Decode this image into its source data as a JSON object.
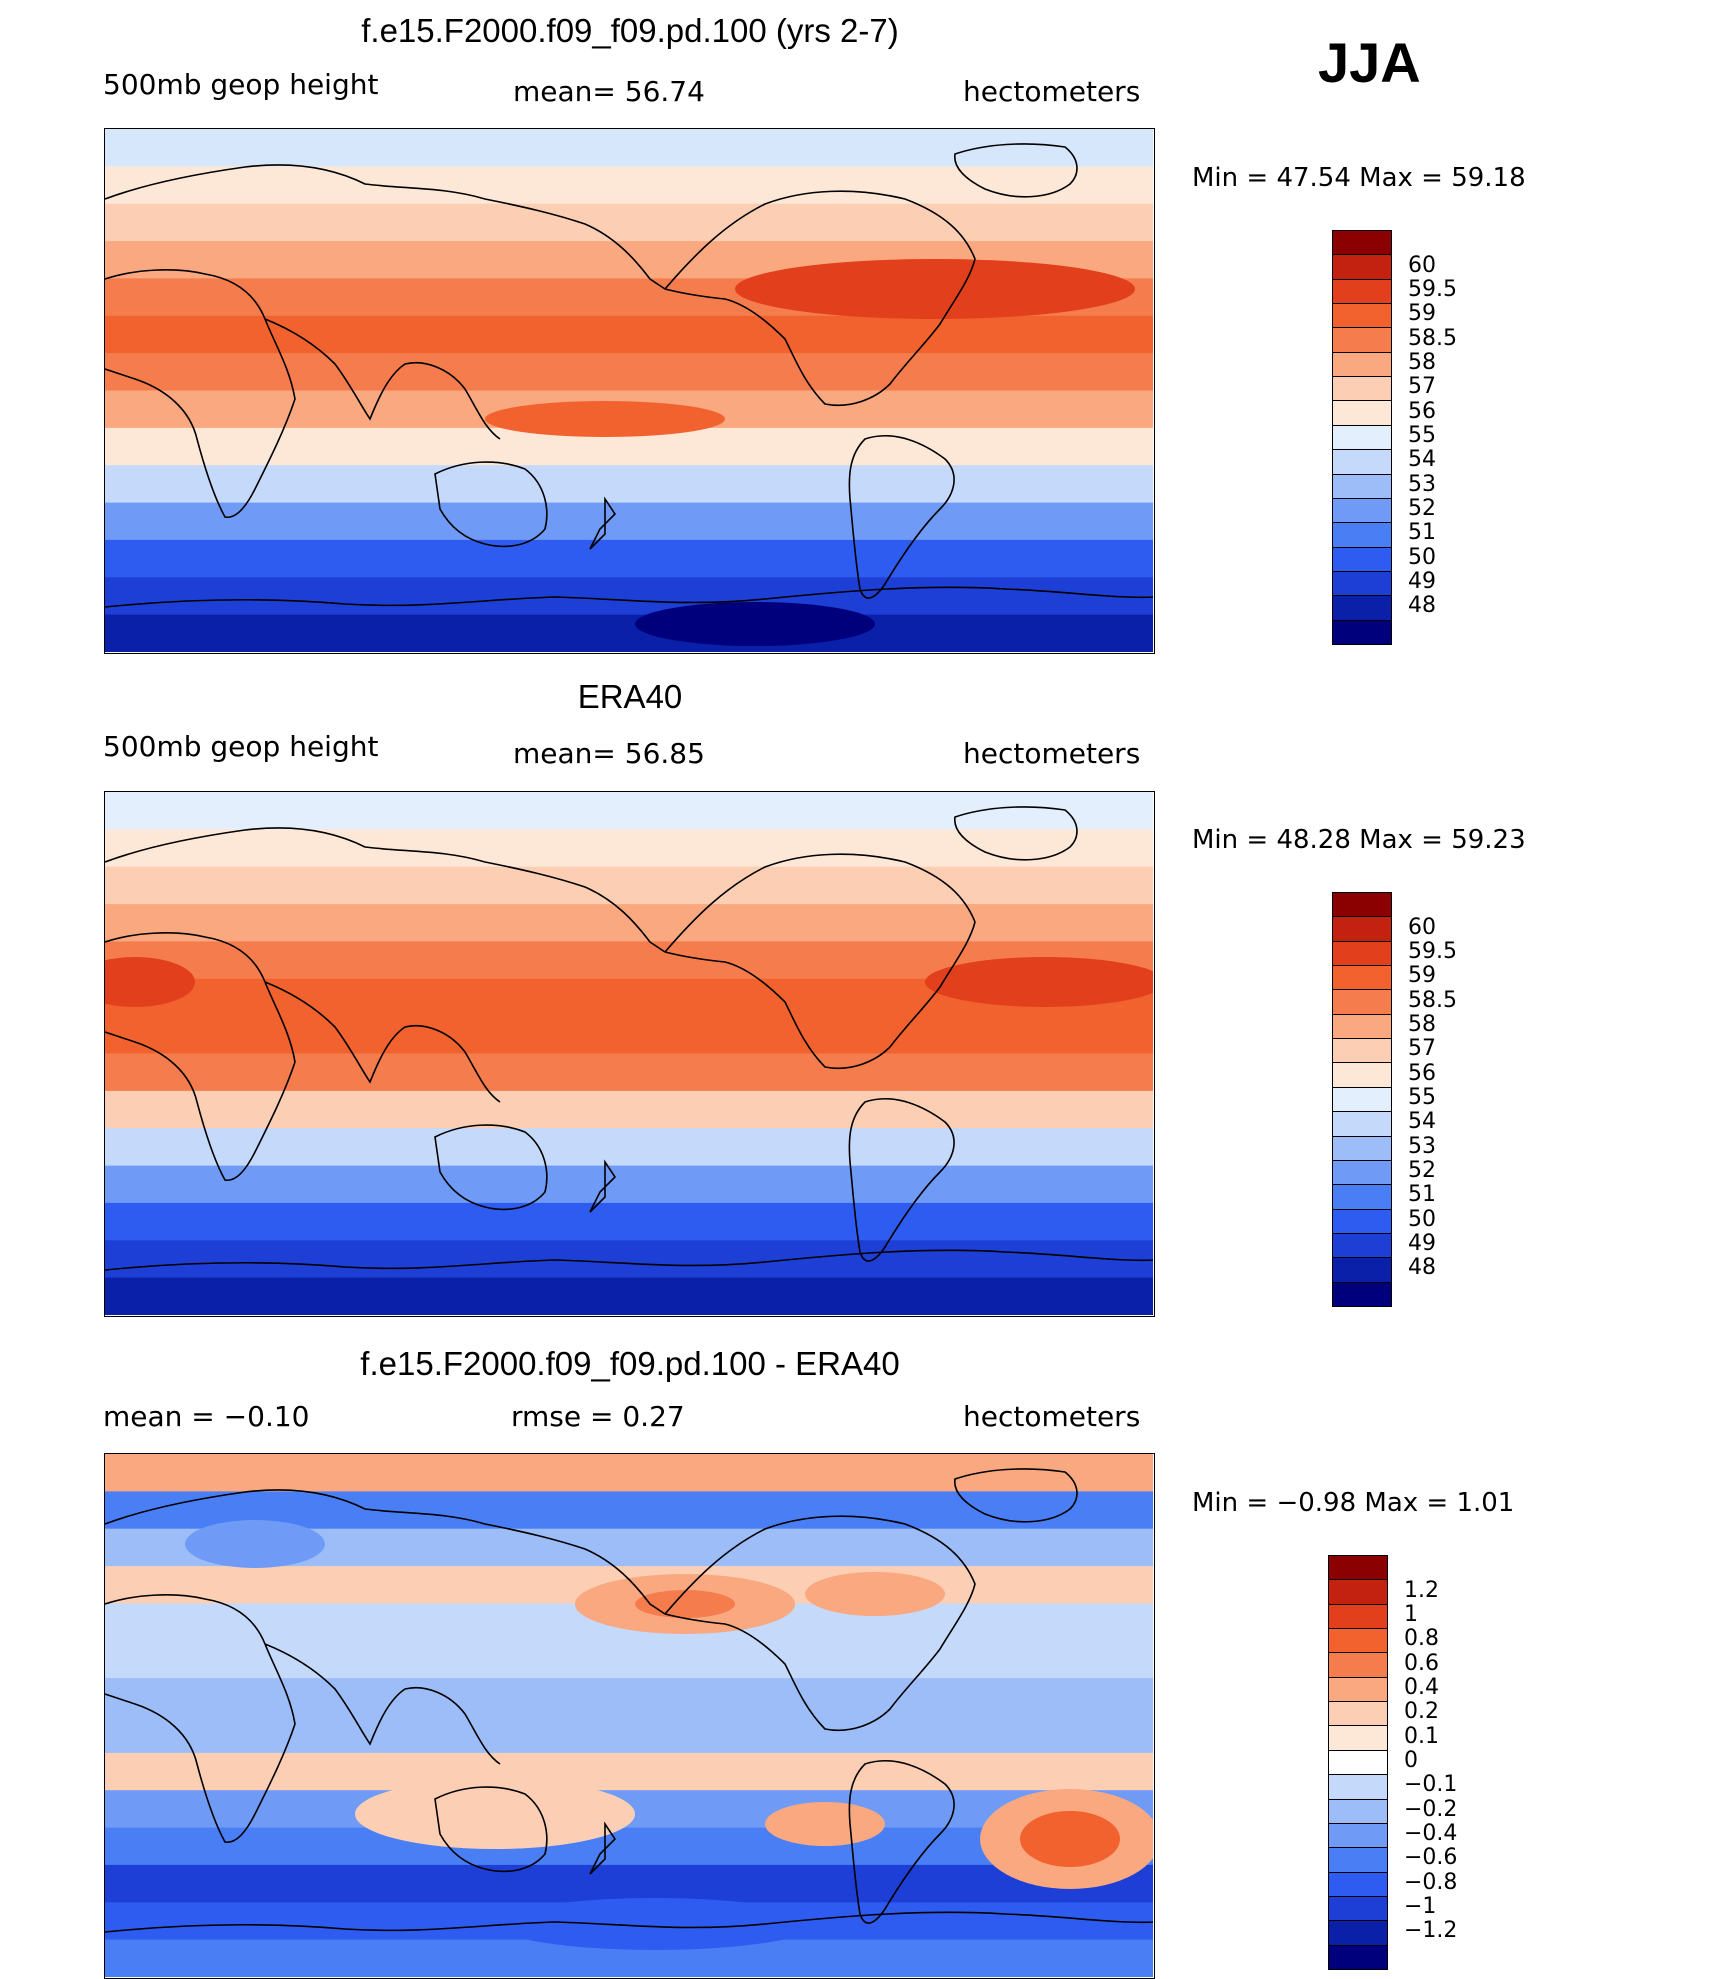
{
  "season": "JJA",
  "panels": [
    {
      "id": "model",
      "title": "f.e15.F2000.f09_f09.pd.100 (yrs 2-7)",
      "left_label": "500mb  geop  height",
      "mid_label": "mean=   56.74",
      "units": "hectometers",
      "minmax": "Min  =    47.54  Max  =    59.18",
      "colors": [
        "#00007d",
        "#0a20a8",
        "#1d3fd6",
        "#2e5cf0",
        "#4a7ef5",
        "#6f9bf7",
        "#9dbdf9",
        "#c5d9fb",
        "#e4effd",
        "#fde8d8",
        "#fccfb5",
        "#f9a880",
        "#f57d4d",
        "#f2622e",
        "#e2401c",
        "#c42210",
        "#8b0000"
      ],
      "labels": [
        "48",
        "49",
        "50",
        "51",
        "52",
        "53",
        "54",
        "55",
        "56",
        "57",
        "58",
        "58.5",
        "59",
        "59.5",
        "60"
      ],
      "map_colors": [
        "#d6e6fb",
        "#fde8d8",
        "#fccfb5",
        "#f9a880",
        "#f57d4d",
        "#f2622e",
        "#f57d4d",
        "#f9a880",
        "#fde8d8",
        "#c5d9fb",
        "#6f9bf7",
        "#2e5cf0",
        "#1d3fd6",
        "#0a20a8"
      ]
    },
    {
      "id": "obs",
      "title": "ERA40",
      "left_label": "500mb  geop  height",
      "mid_label": "mean=   56.85",
      "units": "hectometers",
      "minmax": "Min  =    48.28  Max  =    59.23",
      "colors": [
        "#00007d",
        "#0a20a8",
        "#1d3fd6",
        "#2e5cf0",
        "#4a7ef5",
        "#6f9bf7",
        "#9dbdf9",
        "#c5d9fb",
        "#e4effd",
        "#fde8d8",
        "#fccfb5",
        "#f9a880",
        "#f57d4d",
        "#f2622e",
        "#e2401c",
        "#c42210",
        "#8b0000"
      ],
      "labels": [
        "48",
        "49",
        "50",
        "51",
        "52",
        "53",
        "54",
        "55",
        "56",
        "57",
        "58",
        "58.5",
        "59",
        "59.5",
        "60"
      ],
      "map_colors": [
        "#e4effd",
        "#fde8d8",
        "#fccfb5",
        "#f9a880",
        "#f57d4d",
        "#f2622e",
        "#f2622e",
        "#f57d4d",
        "#fccfb5",
        "#c5d9fb",
        "#6f9bf7",
        "#2e5cf0",
        "#1d3fd6",
        "#0a20a8"
      ]
    },
    {
      "id": "diff",
      "title": "f.e15.F2000.f09_f09.pd.100 - ERA40",
      "left_label": "mean  =    −0.10",
      "mid_label": "rmse  =     0.27",
      "units": "hectometers",
      "minmax": "Min  =    −0.98  Max  =     1.01",
      "colors": [
        "#00007d",
        "#0a20a8",
        "#1d3fd6",
        "#2e5cf0",
        "#4a7ef5",
        "#6f9bf7",
        "#9dbdf9",
        "#c5d9fb",
        "#ffffff",
        "#fde8d8",
        "#fccfb5",
        "#f9a880",
        "#f57d4d",
        "#f2622e",
        "#e2401c",
        "#c42210",
        "#8b0000"
      ],
      "labels": [
        "−1.2",
        "−1",
        "−0.8",
        "−0.6",
        "−0.4",
        "−0.2",
        "−0.1",
        "0",
        "0.1",
        "0.2",
        "0.4",
        "0.6",
        "0.8",
        "1",
        "1.2"
      ],
      "map_colors": [
        "#f9a880",
        "#4a7ef5",
        "#9dbdf9",
        "#fccfb5",
        "#c5d9fb",
        "#c5d9fb",
        "#9dbdf9",
        "#9dbdf9",
        "#fccfb5",
        "#6f9bf7",
        "#4a7ef5",
        "#1d3fd6",
        "#2e5cf0",
        "#4a7ef5"
      ]
    }
  ],
  "chart_data": [
    {
      "type": "heatmap",
      "title": "f.e15.F2000.f09_f09.pd.100 (yrs 2-7)",
      "variable": "500mb geop height",
      "units": "hectometers",
      "mean": 56.74,
      "min": 47.54,
      "max": 59.18,
      "colorbar_levels": [
        48,
        49,
        50,
        51,
        52,
        53,
        54,
        55,
        56,
        57,
        58,
        58.5,
        59,
        59.5,
        60
      ]
    },
    {
      "type": "heatmap",
      "title": "ERA40",
      "variable": "500mb geop height",
      "units": "hectometers",
      "mean": 56.85,
      "min": 48.28,
      "max": 59.23,
      "colorbar_levels": [
        48,
        49,
        50,
        51,
        52,
        53,
        54,
        55,
        56,
        57,
        58,
        58.5,
        59,
        59.5,
        60
      ]
    },
    {
      "type": "heatmap",
      "title": "f.e15.F2000.f09_f09.pd.100 - ERA40",
      "units": "hectometers",
      "mean": -0.1,
      "rmse": 0.27,
      "min": -0.98,
      "max": 1.01,
      "colorbar_levels": [
        -1.2,
        -1,
        -0.8,
        -0.6,
        -0.4,
        -0.2,
        -0.1,
        0,
        0.1,
        0.2,
        0.4,
        0.6,
        0.8,
        1,
        1.2
      ]
    }
  ]
}
